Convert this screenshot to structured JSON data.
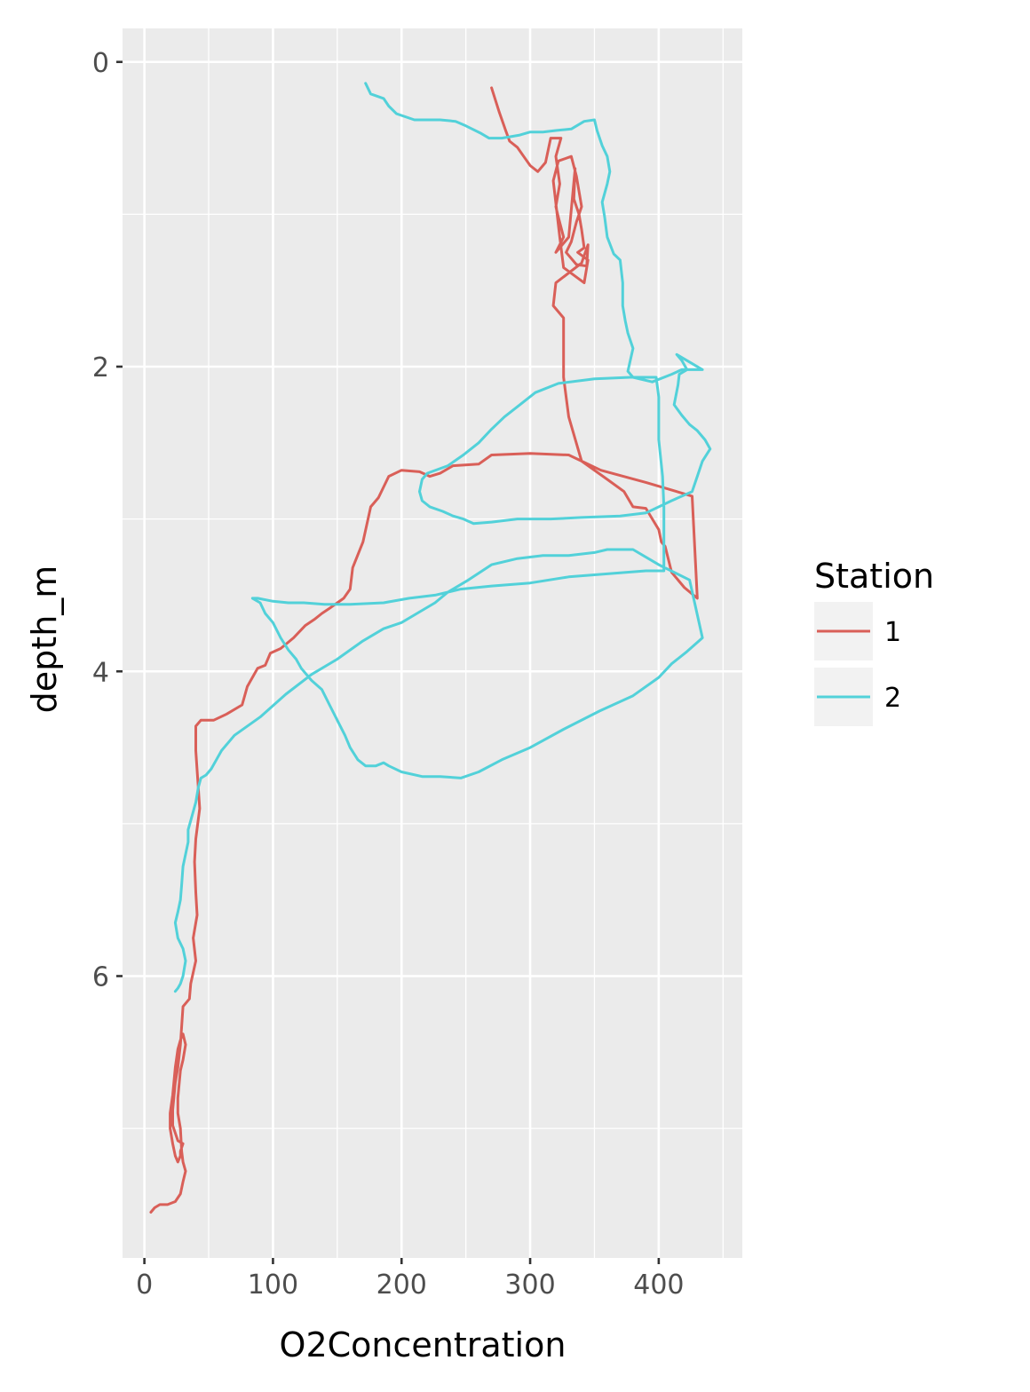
{
  "chart_data": {
    "type": "line",
    "title": "",
    "xlabel": "O2Concentration",
    "ylabel": "depth_m",
    "xlim": [
      -17,
      465
    ],
    "ylim": [
      7.85,
      -0.22
    ],
    "y_reversed": true,
    "x_ticks": [
      0,
      100,
      200,
      300,
      400
    ],
    "y_ticks": [
      0,
      2,
      4,
      6
    ],
    "grid": true,
    "legend": {
      "title": "Station",
      "position": "right"
    },
    "series": [
      {
        "name": "1",
        "color": "#d95f58",
        "points": [
          [
            270,
            0.17
          ],
          [
            276,
            0.33
          ],
          [
            281,
            0.45
          ],
          [
            284,
            0.52
          ],
          [
            290,
            0.56
          ],
          [
            295,
            0.62
          ],
          [
            300,
            0.68
          ],
          [
            306,
            0.72
          ],
          [
            312,
            0.66
          ],
          [
            316,
            0.5
          ],
          [
            324,
            0.5
          ],
          [
            320,
            0.62
          ],
          [
            323,
            0.8
          ],
          [
            320,
            0.95
          ],
          [
            322,
            1.02
          ],
          [
            326,
            1.15
          ],
          [
            320,
            1.25
          ],
          [
            330,
            1.15
          ],
          [
            335,
            0.7
          ],
          [
            334,
            0.9
          ],
          [
            338,
            1.0
          ],
          [
            340,
            1.1
          ],
          [
            342,
            1.22
          ],
          [
            337,
            1.25
          ],
          [
            345,
            1.3
          ],
          [
            342,
            1.45
          ],
          [
            326,
            1.35
          ],
          [
            323,
            1.15
          ],
          [
            318,
            0.78
          ],
          [
            322,
            0.65
          ],
          [
            332,
            0.62
          ],
          [
            336,
            0.75
          ],
          [
            340,
            0.95
          ],
          [
            336,
            1.05
          ],
          [
            332,
            1.18
          ],
          [
            328,
            1.25
          ],
          [
            336,
            1.33
          ],
          [
            344,
            1.34
          ],
          [
            345,
            1.2
          ],
          [
            340,
            1.32
          ],
          [
            320,
            1.45
          ],
          [
            318,
            1.6
          ],
          [
            326,
            1.68
          ],
          [
            326,
            1.8
          ],
          [
            326,
            2.07
          ],
          [
            330,
            2.33
          ],
          [
            340,
            2.62
          ],
          [
            360,
            2.74
          ],
          [
            373,
            2.82
          ],
          [
            380,
            2.92
          ],
          [
            390,
            2.93
          ],
          [
            400,
            3.07
          ],
          [
            402,
            3.15
          ],
          [
            405,
            3.18
          ],
          [
            410,
            3.35
          ],
          [
            420,
            3.45
          ],
          [
            430,
            3.52
          ],
          [
            426,
            2.85
          ],
          [
            390,
            2.76
          ],
          [
            355,
            2.68
          ],
          [
            330,
            2.58
          ],
          [
            300,
            2.57
          ],
          [
            270,
            2.58
          ],
          [
            260,
            2.64
          ],
          [
            240,
            2.65
          ],
          [
            230,
            2.7
          ],
          [
            222,
            2.72
          ],
          [
            214,
            2.69
          ],
          [
            200,
            2.68
          ],
          [
            190,
            2.72
          ],
          [
            182,
            2.86
          ],
          [
            178,
            2.9
          ],
          [
            176,
            2.92
          ],
          [
            170,
            3.15
          ],
          [
            162,
            3.32
          ],
          [
            160,
            3.46
          ],
          [
            155,
            3.52
          ],
          [
            145,
            3.58
          ],
          [
            138,
            3.62
          ],
          [
            132,
            3.66
          ],
          [
            125,
            3.7
          ],
          [
            116,
            3.78
          ],
          [
            106,
            3.85
          ],
          [
            98,
            3.88
          ],
          [
            94,
            3.96
          ],
          [
            88,
            3.98
          ],
          [
            80,
            4.1
          ],
          [
            76,
            4.22
          ],
          [
            64,
            4.28
          ],
          [
            54,
            4.32
          ],
          [
            44,
            4.32
          ],
          [
            40,
            4.36
          ],
          [
            40,
            4.52
          ],
          [
            43,
            4.9
          ],
          [
            40,
            5.1
          ],
          [
            39,
            5.25
          ],
          [
            40,
            5.45
          ],
          [
            41,
            5.6
          ],
          [
            38,
            5.75
          ],
          [
            40,
            5.9
          ],
          [
            36,
            6.05
          ],
          [
            35,
            6.15
          ],
          [
            30,
            6.2
          ],
          [
            28,
            6.45
          ],
          [
            26,
            6.6
          ],
          [
            24,
            6.7
          ],
          [
            22,
            6.88
          ],
          [
            22,
            6.98
          ],
          [
            24,
            7.03
          ],
          [
            26,
            7.08
          ],
          [
            30,
            7.1
          ],
          [
            28,
            7.15
          ],
          [
            28,
            7.18
          ],
          [
            26,
            7.22
          ],
          [
            24,
            7.18
          ],
          [
            22,
            7.1
          ],
          [
            20,
            7.0
          ],
          [
            20,
            6.9
          ],
          [
            22,
            6.78
          ],
          [
            24,
            6.6
          ],
          [
            26,
            6.48
          ],
          [
            28,
            6.42
          ],
          [
            30,
            6.38
          ],
          [
            32,
            6.45
          ],
          [
            30,
            6.55
          ],
          [
            28,
            6.62
          ],
          [
            26,
            6.8
          ],
          [
            26,
            6.9
          ],
          [
            28,
            7.0
          ],
          [
            29,
            7.15
          ],
          [
            30,
            7.22
          ],
          [
            32,
            7.28
          ],
          [
            30,
            7.35
          ],
          [
            28,
            7.43
          ],
          [
            24,
            7.48
          ],
          [
            18,
            7.5
          ],
          [
            12,
            7.5
          ],
          [
            8,
            7.52
          ],
          [
            5,
            7.55
          ]
        ]
      },
      {
        "name": "2",
        "color": "#52d1d9",
        "points": [
          [
            172,
            0.14
          ],
          [
            176,
            0.21
          ],
          [
            186,
            0.24
          ],
          [
            190,
            0.29
          ],
          [
            196,
            0.34
          ],
          [
            210,
            0.38
          ],
          [
            230,
            0.38
          ],
          [
            242,
            0.39
          ],
          [
            250,
            0.42
          ],
          [
            262,
            0.47
          ],
          [
            268,
            0.5
          ],
          [
            278,
            0.5
          ],
          [
            292,
            0.48
          ],
          [
            300,
            0.46
          ],
          [
            310,
            0.46
          ],
          [
            320,
            0.45
          ],
          [
            332,
            0.44
          ],
          [
            342,
            0.39
          ],
          [
            350,
            0.38
          ],
          [
            352,
            0.45
          ],
          [
            356,
            0.55
          ],
          [
            360,
            0.62
          ],
          [
            362,
            0.72
          ],
          [
            360,
            0.8
          ],
          [
            356,
            0.92
          ],
          [
            358,
            1.02
          ],
          [
            360,
            1.15
          ],
          [
            365,
            1.26
          ],
          [
            370,
            1.3
          ],
          [
            372,
            1.45
          ],
          [
            372,
            1.6
          ],
          [
            374,
            1.7
          ],
          [
            376,
            1.78
          ],
          [
            380,
            1.88
          ],
          [
            376,
            2.03
          ],
          [
            380,
            2.07
          ],
          [
            395,
            2.1
          ],
          [
            410,
            2.05
          ],
          [
            418,
            2.02
          ],
          [
            428,
            2.02
          ],
          [
            434,
            2.02
          ],
          [
            426,
            1.98
          ],
          [
            420,
            1.95
          ],
          [
            414,
            1.92
          ],
          [
            418,
            1.96
          ],
          [
            422,
            2.02
          ],
          [
            416,
            2.05
          ],
          [
            415,
            2.12
          ],
          [
            412,
            2.25
          ],
          [
            418,
            2.32
          ],
          [
            424,
            2.38
          ],
          [
            430,
            2.42
          ],
          [
            436,
            2.48
          ],
          [
            440,
            2.54
          ],
          [
            434,
            2.62
          ],
          [
            430,
            2.72
          ],
          [
            426,
            2.82
          ],
          [
            410,
            2.88
          ],
          [
            390,
            2.96
          ],
          [
            370,
            2.98
          ],
          [
            340,
            2.99
          ],
          [
            316,
            3.0
          ],
          [
            290,
            3.0
          ],
          [
            270,
            3.02
          ],
          [
            256,
            3.03
          ],
          [
            248,
            3.0
          ],
          [
            240,
            2.98
          ],
          [
            232,
            2.95
          ],
          [
            222,
            2.92
          ],
          [
            216,
            2.88
          ],
          [
            214,
            2.82
          ],
          [
            216,
            2.74
          ],
          [
            220,
            2.7
          ],
          [
            236,
            2.65
          ],
          [
            248,
            2.58
          ],
          [
            260,
            2.5
          ],
          [
            270,
            2.41
          ],
          [
            280,
            2.33
          ],
          [
            292,
            2.25
          ],
          [
            304,
            2.17
          ],
          [
            322,
            2.11
          ],
          [
            350,
            2.08
          ],
          [
            378,
            2.07
          ],
          [
            398,
            2.07
          ],
          [
            400,
            2.2
          ],
          [
            400,
            2.48
          ],
          [
            403,
            2.72
          ],
          [
            404,
            2.92
          ],
          [
            404,
            3.2
          ],
          [
            404,
            3.34
          ],
          [
            390,
            3.34
          ],
          [
            360,
            3.36
          ],
          [
            330,
            3.38
          ],
          [
            300,
            3.42
          ],
          [
            270,
            3.44
          ],
          [
            246,
            3.46
          ],
          [
            226,
            3.5
          ],
          [
            206,
            3.52
          ],
          [
            186,
            3.55
          ],
          [
            160,
            3.56
          ],
          [
            140,
            3.56
          ],
          [
            124,
            3.55
          ],
          [
            112,
            3.55
          ],
          [
            100,
            3.54
          ],
          [
            88,
            3.52
          ],
          [
            84,
            3.52
          ],
          [
            90,
            3.55
          ],
          [
            94,
            3.62
          ],
          [
            100,
            3.68
          ],
          [
            106,
            3.78
          ],
          [
            112,
            3.86
          ],
          [
            118,
            3.92
          ],
          [
            122,
            3.98
          ],
          [
            126,
            4.02
          ],
          [
            130,
            4.06
          ],
          [
            138,
            4.12
          ],
          [
            144,
            4.22
          ],
          [
            150,
            4.32
          ],
          [
            156,
            4.42
          ],
          [
            160,
            4.5
          ],
          [
            166,
            4.58
          ],
          [
            172,
            4.62
          ],
          [
            180,
            4.62
          ],
          [
            186,
            4.6
          ],
          [
            190,
            4.62
          ],
          [
            200,
            4.66
          ],
          [
            216,
            4.69
          ],
          [
            230,
            4.69
          ],
          [
            246,
            4.7
          ],
          [
            260,
            4.66
          ],
          [
            278,
            4.58
          ],
          [
            300,
            4.5
          ],
          [
            326,
            4.38
          ],
          [
            354,
            4.26
          ],
          [
            380,
            4.16
          ],
          [
            400,
            4.04
          ],
          [
            410,
            3.95
          ],
          [
            422,
            3.87
          ],
          [
            434,
            3.78
          ],
          [
            424,
            3.4
          ],
          [
            400,
            3.3
          ],
          [
            380,
            3.2
          ],
          [
            360,
            3.2
          ],
          [
            350,
            3.22
          ],
          [
            330,
            3.24
          ],
          [
            310,
            3.24
          ],
          [
            290,
            3.26
          ],
          [
            270,
            3.3
          ],
          [
            252,
            3.4
          ],
          [
            236,
            3.48
          ],
          [
            226,
            3.55
          ],
          [
            212,
            3.62
          ],
          [
            200,
            3.68
          ],
          [
            186,
            3.72
          ],
          [
            170,
            3.8
          ],
          [
            150,
            3.92
          ],
          [
            130,
            4.02
          ],
          [
            110,
            4.15
          ],
          [
            90,
            4.3
          ],
          [
            70,
            4.42
          ],
          [
            60,
            4.52
          ],
          [
            56,
            4.58
          ],
          [
            52,
            4.64
          ],
          [
            48,
            4.68
          ],
          [
            44,
            4.7
          ],
          [
            42,
            4.76
          ],
          [
            40,
            4.86
          ],
          [
            36,
            4.98
          ],
          [
            34,
            5.04
          ],
          [
            34,
            5.12
          ],
          [
            30,
            5.28
          ],
          [
            29,
            5.4
          ],
          [
            28,
            5.5
          ],
          [
            26,
            5.58
          ],
          [
            24,
            5.65
          ],
          [
            26,
            5.75
          ],
          [
            30,
            5.82
          ],
          [
            32,
            5.9
          ],
          [
            30,
            6.0
          ],
          [
            28,
            6.05
          ],
          [
            26,
            6.08
          ],
          [
            24,
            6.1
          ]
        ]
      }
    ]
  }
}
